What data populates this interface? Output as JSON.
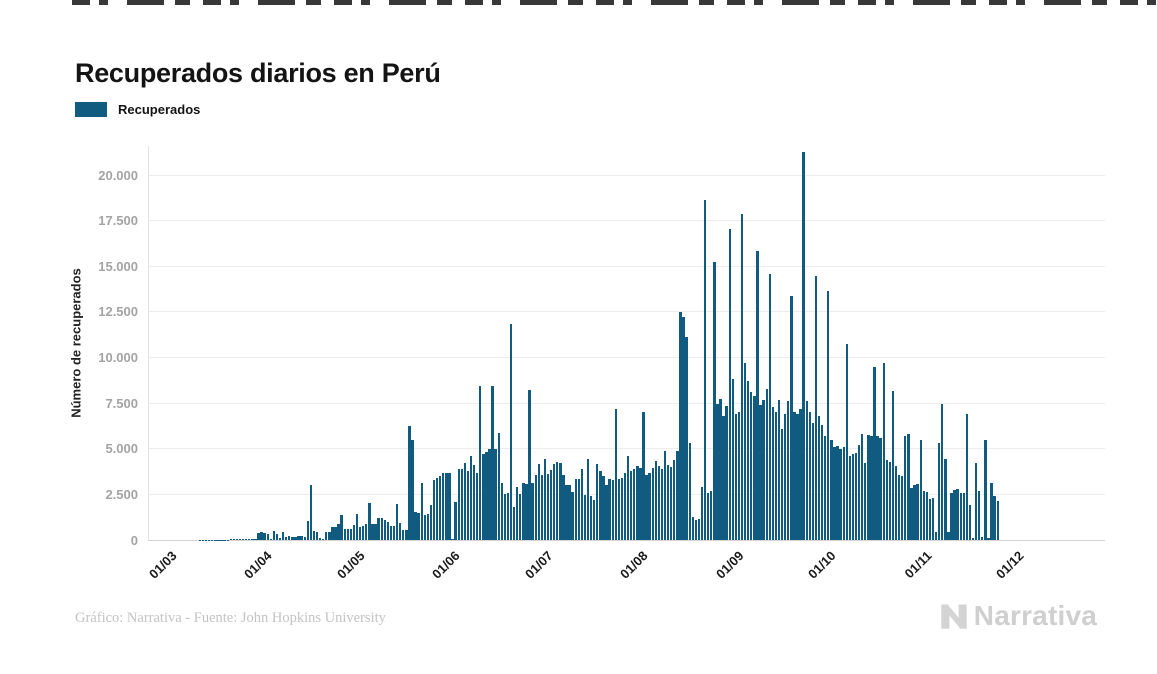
{
  "page": {
    "background": "#ffffff"
  },
  "header": {
    "title": "Recuperados diarios en Perú"
  },
  "legend": {
    "label": "Recuperados",
    "color": "#115a80"
  },
  "footer": {
    "credit": "Gráfico: Narrativa - Fuente: John Hopkins University",
    "brand": "Narrativa"
  },
  "chart_data": {
    "type": "bar",
    "title": "Recuperados diarios en Perú",
    "xlabel": "",
    "ylabel": "Número de recuperados",
    "series_name": "Recuperados",
    "bar_color": "#115a80",
    "grid": true,
    "legend_position": "top-left",
    "ylim": [
      0,
      21600
    ],
    "yticks": [
      {
        "value": 0,
        "label": "0"
      },
      {
        "value": 2500,
        "label": "2.500"
      },
      {
        "value": 5000,
        "label": "5.000"
      },
      {
        "value": 7500,
        "label": "7.500"
      },
      {
        "value": 10000,
        "label": "10.000"
      },
      {
        "value": 12500,
        "label": "12.500"
      },
      {
        "value": 15000,
        "label": "15.000"
      },
      {
        "value": 17500,
        "label": "17.500"
      },
      {
        "value": 20000,
        "label": "20.000"
      }
    ],
    "x_unit": "day",
    "x_ticks": [
      {
        "label": "01/03",
        "day": 0
      },
      {
        "label": "01/04",
        "day": 31
      },
      {
        "label": "01/05",
        "day": 61
      },
      {
        "label": "01/06",
        "day": 92
      },
      {
        "label": "01/07",
        "day": 122
      },
      {
        "label": "01/08",
        "day": 153
      },
      {
        "label": "01/09",
        "day": 184
      },
      {
        "label": "01/10",
        "day": 214
      },
      {
        "label": "01/11",
        "day": 245
      },
      {
        "label": "01/12",
        "day": 275
      }
    ],
    "values": [
      0,
      0,
      0,
      0,
      0,
      0,
      0,
      0,
      0,
      0,
      0,
      0,
      8,
      10,
      12,
      14,
      16,
      18,
      20,
      22,
      25,
      27,
      30,
      33,
      36,
      39,
      42,
      45,
      48,
      52,
      55,
      395,
      440,
      370,
      350,
      60,
      480,
      330,
      100,
      420,
      150,
      240,
      190,
      180,
      200,
      240,
      150,
      1050,
      3000,
      480,
      450,
      100,
      80,
      420,
      440,
      720,
      700,
      900,
      1380,
      600,
      630,
      600,
      800,
      1400,
      700,
      750,
      900,
      2030,
      900,
      860,
      1220,
      1200,
      1100,
      1000,
      775,
      780,
      2000,
      930,
      550,
      560,
      6250,
      5470,
      1550,
      1500,
      3100,
      1380,
      1400,
      1930,
      3300,
      3390,
      3500,
      3670,
      3670,
      3700,
      30,
      2100,
      3870,
      3900,
      4230,
      3800,
      4600,
      4100,
      3700,
      8460,
      4700,
      4800,
      5000,
      8450,
      5000,
      5870,
      3100,
      2540,
      2600,
      11840,
      1800,
      2900,
      2540,
      3100,
      3050,
      8240,
      3100,
      3590,
      4150,
      3590,
      4420,
      3600,
      3850,
      4150,
      4260,
      4200,
      3590,
      3040,
      3000,
      2650,
      3320,
      3350,
      3870,
      2490,
      4420,
      2400,
      2210,
      4150,
      3810,
      3500,
      3040,
      3370,
      3300,
      7190,
      3370,
      3400,
      3650,
      4590,
      3810,
      3900,
      4040,
      3950,
      7020,
      3590,
      3700,
      3920,
      4310,
      4040,
      3900,
      4860,
      4100,
      4000,
      4400,
      4900,
      12520,
      12230,
      11130,
      5320,
      1270,
      1100,
      1150,
      2900,
      18650,
      2550,
      2700,
      15230,
      7470,
      7740,
      6800,
      7350,
      17030,
      8840,
      6900,
      7000,
      17870,
      9680,
      8740,
      8100,
      7900,
      15850,
      7400,
      7700,
      8300,
      14560,
      7300,
      7000,
      7700,
      6100,
      6900,
      7600,
      13360,
      7000,
      6900,
      7200,
      21270,
      7600,
      7000,
      6400,
      14450,
      6800,
      6300,
      5700,
      13650,
      5500,
      5100,
      5150,
      5000,
      5100,
      10730,
      4600,
      4700,
      4750,
      5200,
      5800,
      4220,
      5760,
      5700,
      9500,
      5700,
      5600,
      9730,
      4400,
      4300,
      8180,
      4050,
      3590,
      3500,
      5700,
      5800,
      2830,
      3000,
      3050,
      5500,
      2700,
      2650,
      2270,
      2300,
      450,
      5300,
      7460,
      4460,
      460,
      2600,
      2750,
      2780,
      2600,
      2550,
      6900,
      1930,
      100,
      4220,
      2700,
      150,
      5470,
      120,
      3100,
      2400,
      2150,
      0,
      0,
      0,
      0
    ]
  }
}
